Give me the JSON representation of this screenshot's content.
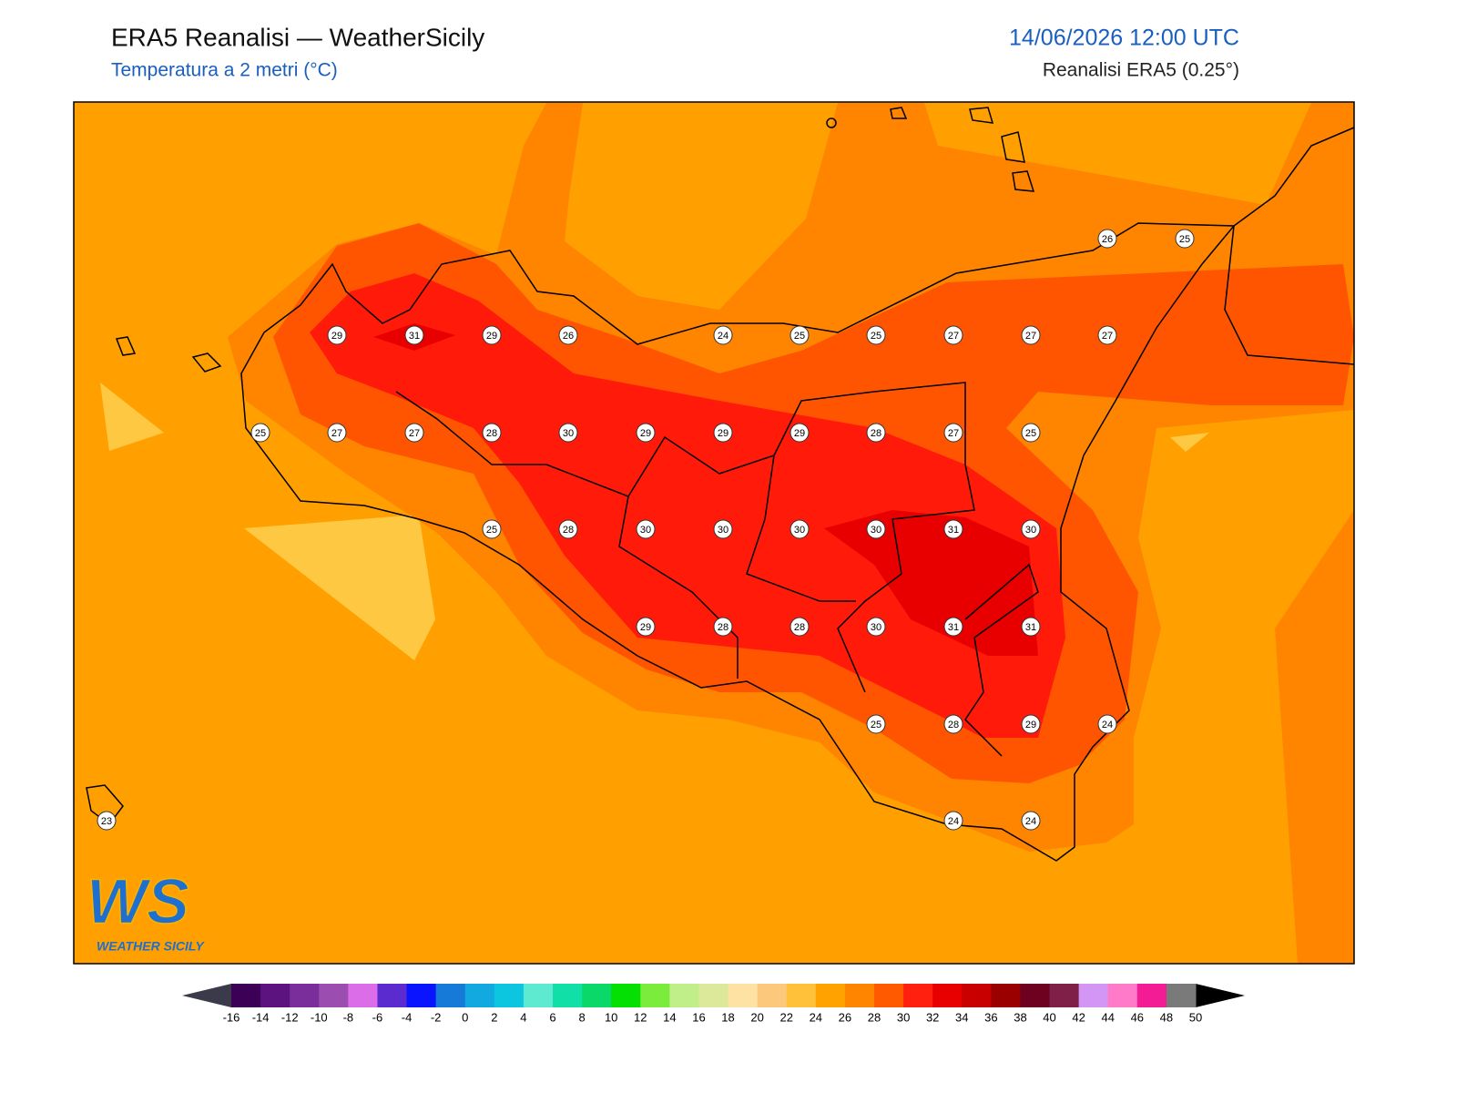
{
  "header": {
    "title": "ERA5 Reanalisi — WeatherSicily",
    "subtitle": "Temperatura a 2 metri (°C)",
    "datetime": "14/06/2026 12:00 UTC",
    "source": "Reanalisi ERA5 (0.25°)"
  },
  "stations": [
    29,
    31,
    29,
    26,
    24,
    25,
    25,
    27,
    27,
    27,
    26,
    25,
    25,
    27,
    27,
    28,
    30,
    29,
    29,
    29,
    28,
    27,
    25,
    25,
    28,
    30,
    30,
    30,
    30,
    31,
    30,
    29,
    28,
    28,
    30,
    31,
    31,
    25,
    28,
    29,
    24,
    23,
    24,
    24
  ],
  "colorbar": {
    "ticks": [
      -16,
      -14,
      -12,
      -10,
      -8,
      -6,
      -4,
      -2,
      0,
      2,
      4,
      6,
      8,
      10,
      12,
      14,
      16,
      18,
      20,
      22,
      24,
      26,
      28,
      30,
      32,
      34,
      36,
      38,
      40,
      42,
      44,
      46,
      48,
      50
    ],
    "colors": [
      "#3d0057",
      "#5c127f",
      "#7a2e9c",
      "#9b4db0",
      "#dc6de8",
      "#5c2bd0",
      "#0a14ff",
      "#167ad8",
      "#12a8e0",
      "#0cc6e0",
      "#5eead0",
      "#10e0a8",
      "#0ad868",
      "#04e004",
      "#7cec3c",
      "#c0ee88",
      "#dce89a",
      "#fee2a4",
      "#fcc87c",
      "#ffc13a",
      "#ffa200",
      "#ff8400",
      "#ff5a00",
      "#ff2010",
      "#e80000",
      "#c80000",
      "#9a0000",
      "#6e0020",
      "#7e2048",
      "#d496f4",
      "#ff7ac8",
      "#f41c94",
      "#7a7a7a"
    ],
    "under_color": "#3a3a4a",
    "over_color": "#000000"
  },
  "logo": {
    "letters": "WS",
    "text": "WEATHER SICILY"
  }
}
